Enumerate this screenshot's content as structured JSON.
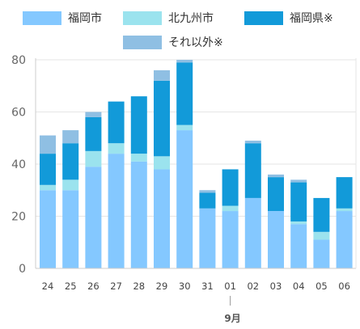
{
  "colors": {
    "fukuoka_city": "#84c8ff",
    "kitakyushu_city": "#9be3ee",
    "fukuoka_pref": "#129ad9",
    "other": "#8fbfe3",
    "axis": "#cccccc",
    "grid": "#e6e6e6"
  },
  "legend": [
    {
      "label": "福岡市",
      "color": "#84c8ff"
    },
    {
      "label": "北九州市",
      "color": "#9be3ee"
    },
    {
      "label": "福岡県※",
      "color": "#129ad9"
    },
    {
      "label": "それ以外※",
      "color": "#8fbfe3"
    }
  ],
  "chart_data": {
    "type": "bar",
    "stacked": true,
    "categories": [
      "24",
      "25",
      "26",
      "27",
      "28",
      "29",
      "30",
      "31",
      "01",
      "02",
      "03",
      "04",
      "05",
      "06"
    ],
    "month_label": "9月",
    "month_label_category": "01",
    "series": [
      {
        "name": "福岡市",
        "values": [
          30,
          30,
          39,
          44,
          41,
          38,
          53,
          23,
          22,
          27,
          22,
          17,
          11,
          22
        ]
      },
      {
        "name": "北九州市",
        "values": [
          2,
          4,
          6,
          4,
          3,
          5,
          2,
          0,
          2,
          0,
          0,
          1,
          3,
          1
        ]
      },
      {
        "name": "福岡県※",
        "values": [
          12,
          14,
          13,
          16,
          22,
          29,
          24,
          6,
          14,
          21,
          13,
          15,
          13,
          12
        ]
      },
      {
        "name": "それ以外※",
        "values": [
          7,
          5,
          2,
          0,
          0,
          4,
          1,
          1,
          0,
          1,
          1,
          1,
          0,
          0
        ]
      }
    ],
    "ylim": [
      0,
      80
    ],
    "yticks": [
      0,
      20,
      40,
      60,
      80
    ],
    "grid": true,
    "legend_position": "top"
  }
}
